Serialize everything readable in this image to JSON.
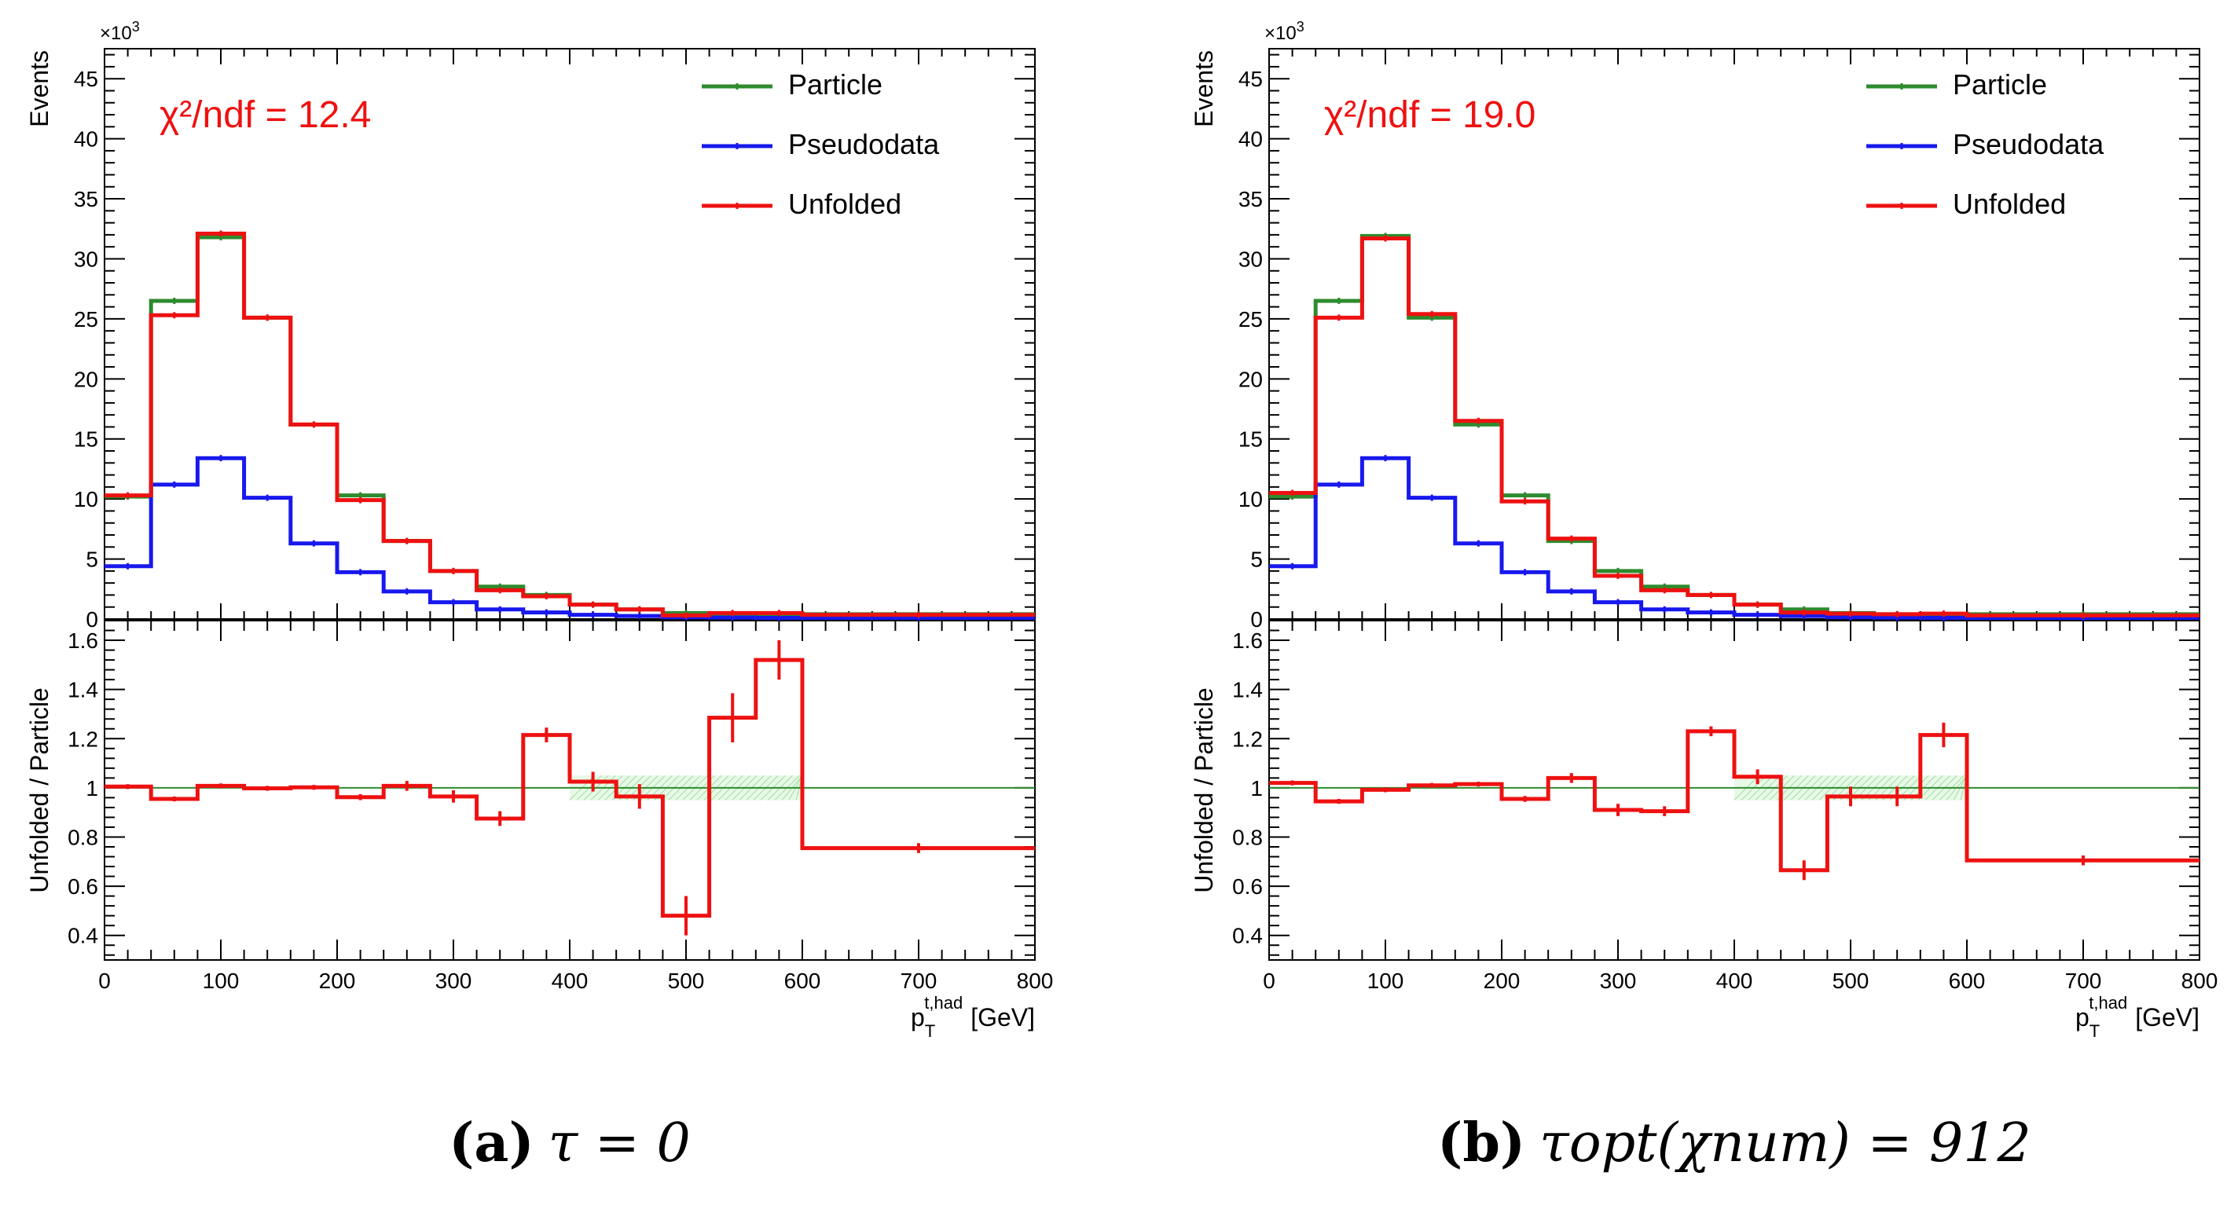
{
  "colors": {
    "particle": "#2e8b2e",
    "pseudodata": "#1818ee",
    "unfolded": "#ee1111",
    "chi2_text": "#ee1111",
    "band": "#7fd67f",
    "axis": "#000000"
  },
  "shared": {
    "xlabel_main": "p",
    "xlabel_sub": "T",
    "xlabel_sup": "t,had",
    "xlabel_unit": "[GeV]",
    "ylabel_top": "Events",
    "ylabel_bottom": "Unfolded / Particle",
    "exponent_base": "×10",
    "exponent_power": "3",
    "legend": [
      "Particle",
      "Pseudodata",
      "Unfolded"
    ]
  },
  "chart_data": [
    {
      "id": "a",
      "type": "line",
      "caption_label": "(a)",
      "caption_formula": "τ = 0",
      "chi2_label": "χ²/ndf = 12.4",
      "bin_edges": [
        0,
        40,
        80,
        120,
        160,
        200,
        240,
        280,
        320,
        360,
        400,
        440,
        480,
        520,
        560,
        600,
        800
      ],
      "xlim": [
        0,
        800
      ],
      "xticks": [
        0,
        100,
        200,
        300,
        400,
        500,
        600,
        700,
        800
      ],
      "top_ylim": [
        0,
        47.5
      ],
      "top_yticks": [
        0,
        5,
        10,
        15,
        20,
        25,
        30,
        35,
        40,
        45
      ],
      "top_series": [
        {
          "name": "Particle",
          "values": [
            10.2,
            26.5,
            31.8,
            25.1,
            16.2,
            10.3,
            6.5,
            4.0,
            2.7,
            2.0,
            1.2,
            0.8,
            0.5,
            0.4,
            0.35,
            0.4
          ]
        },
        {
          "name": "Pseudodata",
          "values": [
            4.4,
            11.2,
            13.4,
            10.1,
            6.3,
            3.9,
            2.3,
            1.4,
            0.8,
            0.55,
            0.35,
            0.25,
            0.15,
            0.12,
            0.1,
            0.1
          ]
        },
        {
          "name": "Unfolded",
          "values": [
            10.3,
            25.3,
            32.1,
            25.1,
            16.2,
            9.9,
            6.5,
            4.0,
            2.4,
            1.9,
            1.2,
            0.8,
            0.3,
            0.5,
            0.5,
            0.35
          ]
        }
      ],
      "bottom_ylim": [
        0.3,
        1.68
      ],
      "bottom_yticks": [
        0.4,
        0.6,
        0.8,
        1.0,
        1.2,
        1.4,
        1.6
      ],
      "bottom_yticklabels": [
        "0.4",
        "0.6",
        "0.8",
        "1",
        "1.2",
        "1.4",
        "1.6"
      ],
      "ratio": [
        1.005,
        0.955,
        1.008,
        0.998,
        1.002,
        0.962,
        1.008,
        0.965,
        0.875,
        1.215,
        1.025,
        0.965,
        0.48,
        1.285,
        1.52,
        0.755
      ],
      "ratio_err": [
        0.01,
        0.01,
        0.01,
        0.01,
        0.01,
        0.012,
        0.02,
        0.025,
        0.03,
        0.03,
        0.04,
        0.05,
        0.08,
        0.1,
        0.08,
        0.02
      ],
      "band_range": [
        400,
        600
      ],
      "band_halfwidth": 0.05
    },
    {
      "id": "b",
      "type": "line",
      "caption_label": "(b)",
      "caption_formula": "τopt(χnum) = 912",
      "chi2_label": "χ²/ndf = 19.0",
      "bin_edges": [
        0,
        40,
        80,
        120,
        160,
        200,
        240,
        280,
        320,
        360,
        400,
        440,
        480,
        520,
        560,
        600,
        800
      ],
      "xlim": [
        0,
        800
      ],
      "xticks": [
        0,
        100,
        200,
        300,
        400,
        500,
        600,
        700,
        800
      ],
      "top_ylim": [
        0,
        47.5
      ],
      "top_yticks": [
        0,
        5,
        10,
        15,
        20,
        25,
        30,
        35,
        40,
        45
      ],
      "top_series": [
        {
          "name": "Particle",
          "values": [
            10.2,
            26.5,
            31.9,
            25.1,
            16.2,
            10.3,
            6.5,
            4.0,
            2.7,
            2.0,
            1.2,
            0.8,
            0.5,
            0.4,
            0.35,
            0.4
          ]
        },
        {
          "name": "Pseudodata",
          "values": [
            4.4,
            11.2,
            13.4,
            10.1,
            6.3,
            3.9,
            2.3,
            1.4,
            0.8,
            0.55,
            0.35,
            0.25,
            0.15,
            0.12,
            0.1,
            0.1
          ]
        },
        {
          "name": "Unfolded",
          "values": [
            10.5,
            25.1,
            31.7,
            25.4,
            16.5,
            9.8,
            6.7,
            3.6,
            2.4,
            2.0,
            1.2,
            0.55,
            0.45,
            0.4,
            0.45,
            0.3
          ]
        }
      ],
      "bottom_ylim": [
        0.3,
        1.68
      ],
      "bottom_yticks": [
        0.4,
        0.6,
        0.8,
        1.0,
        1.2,
        1.4,
        1.6
      ],
      "bottom_yticklabels": [
        "0.4",
        "0.6",
        "0.8",
        "1",
        "1.2",
        "1.4",
        "1.6"
      ],
      "ratio": [
        1.02,
        0.945,
        0.992,
        1.01,
        1.015,
        0.955,
        1.04,
        0.91,
        0.905,
        1.23,
        1.045,
        0.665,
        0.965,
        0.965,
        1.215,
        0.705
      ],
      "ratio_err": [
        0.01,
        0.01,
        0.01,
        0.01,
        0.01,
        0.012,
        0.02,
        0.025,
        0.02,
        0.02,
        0.03,
        0.04,
        0.04,
        0.04,
        0.05,
        0.02
      ],
      "band_range": [
        400,
        600
      ],
      "band_halfwidth": 0.05
    }
  ]
}
